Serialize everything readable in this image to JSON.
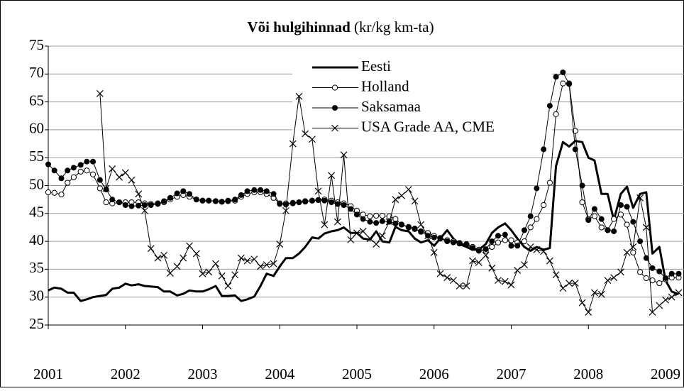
{
  "chart_data": {
    "type": "line",
    "title": "Või hulgihinnad",
    "subtitle": "(kr/kg km-ta)",
    "xlim": [
      2001,
      2009.25
    ],
    "xticks": [
      2001,
      2002,
      2003,
      2004,
      2005,
      2006,
      2007,
      2008,
      2009
    ],
    "ylim": [
      25,
      75
    ],
    "yticks": [
      25,
      30,
      35,
      40,
      45,
      50,
      55,
      60,
      65,
      70,
      75
    ],
    "grid": true,
    "legend": "top",
    "x": [
      2001,
      2001.08,
      2001.17,
      2001.25,
      2001.33,
      2001.42,
      2001.5,
      2001.58,
      2001.67,
      2001.75,
      2001.83,
      2001.92,
      2002,
      2002.08,
      2002.17,
      2002.25,
      2002.33,
      2002.42,
      2002.5,
      2002.58,
      2002.67,
      2002.75,
      2002.83,
      2002.92,
      2003,
      2003.08,
      2003.17,
      2003.25,
      2003.33,
      2003.42,
      2003.5,
      2003.58,
      2003.67,
      2003.75,
      2003.83,
      2003.92,
      2004,
      2004.08,
      2004.17,
      2004.25,
      2004.33,
      2004.42,
      2004.5,
      2004.58,
      2004.67,
      2004.75,
      2004.83,
      2004.92,
      2005,
      2005.08,
      2005.17,
      2005.25,
      2005.33,
      2005.42,
      2005.5,
      2005.58,
      2005.67,
      2005.75,
      2005.83,
      2005.92,
      2006,
      2006.08,
      2006.17,
      2006.25,
      2006.33,
      2006.42,
      2006.5,
      2006.58,
      2006.67,
      2006.75,
      2006.83,
      2006.92,
      2007,
      2007.08,
      2007.17,
      2007.25,
      2007.33,
      2007.42,
      2007.5,
      2007.58,
      2007.67,
      2007.75,
      2007.83,
      2007.92,
      2008,
      2008.08,
      2008.17,
      2008.25,
      2008.33,
      2008.42,
      2008.5,
      2008.58,
      2008.67,
      2008.75,
      2008.83,
      2008.92,
      2009,
      2009.08,
      2009.17
    ],
    "series": [
      {
        "name": "Eesti",
        "color": "#000000",
        "width": 3,
        "marker": "none",
        "values": [
          31.2,
          31.7,
          31.5,
          30.8,
          30.8,
          29.3,
          29.6,
          30,
          30.2,
          30.4,
          31.5,
          31.7,
          32.4,
          32.1,
          32.3,
          32,
          31.9,
          31.8,
          31,
          31,
          30.3,
          30.6,
          31.2,
          31,
          31,
          31.4,
          32,
          30.2,
          30.2,
          30.3,
          29.3,
          29.6,
          30.1,
          32,
          34.2,
          33.8,
          35.5,
          37,
          37,
          37.8,
          39,
          40.7,
          40.5,
          41.4,
          41.8,
          42,
          42.5,
          41.5,
          41.5,
          40.5,
          40.3,
          41.8,
          40,
          39.8,
          42.6,
          42,
          41.8,
          40.5,
          39.8,
          40.2,
          39.2,
          40.5,
          42,
          40.5,
          39.5,
          39,
          38.5,
          38.5,
          39.5,
          41.5,
          42.5,
          43.2,
          42,
          40.5,
          39,
          38.3,
          39,
          38.5,
          38.8,
          53.5,
          57.8,
          57,
          58,
          57.8,
          55,
          54.5,
          48.5,
          48.5,
          43.8,
          48.5,
          49.8,
          46,
          48.5,
          48.8,
          37.8,
          39,
          33,
          31,
          30.5
        ]
      },
      {
        "name": "Holland",
        "color": "#000000",
        "width": 1,
        "marker": "open-circle",
        "values": [
          48.8,
          48.7,
          48.4,
          50.5,
          51.5,
          52.5,
          52.7,
          52,
          49.5,
          47,
          46.8,
          47,
          47,
          47,
          47,
          46.8,
          46.7,
          46.8,
          47,
          47.5,
          48,
          48.3,
          48,
          47.5,
          47.3,
          47.3,
          47.2,
          47.1,
          47.2,
          47.3,
          48,
          48.5,
          48.8,
          48.8,
          48.5,
          47.8,
          46.8,
          46.8,
          46.9,
          47,
          47.2,
          47.3,
          47.4,
          47.5,
          47.3,
          47,
          46.8,
          46.3,
          45.5,
          44.8,
          44.5,
          44.6,
          44.6,
          44.5,
          44,
          43,
          42.5,
          42.2,
          41.8,
          41.5,
          41,
          40.6,
          40.2,
          40,
          39.7,
          39.5,
          39,
          38.5,
          38.3,
          39,
          39.8,
          40.2,
          40.2,
          39.8,
          40,
          42.5,
          44,
          46.5,
          50.5,
          62.8,
          68.3,
          68.3,
          59.8,
          47,
          44,
          44.5,
          42.5,
          42,
          44,
          44.8,
          43,
          38,
          34.5,
          33.4,
          33,
          32.5,
          33.2,
          33.5,
          33.5
        ]
      },
      {
        "name": "Saksamaa",
        "color": "#000000",
        "width": 1,
        "marker": "filled-circle",
        "values": [
          53.8,
          52.7,
          51.3,
          52.7,
          53.2,
          53.7,
          54.3,
          54.3,
          51,
          49.3,
          47.5,
          47,
          46.5,
          46.3,
          46.4,
          46.5,
          46.5,
          46.7,
          47.2,
          47.8,
          48.6,
          49,
          48.5,
          47.5,
          47.3,
          47.3,
          47.2,
          47.1,
          47.3,
          47.5,
          48.3,
          49,
          49.2,
          49.2,
          49,
          48.5,
          46.7,
          46.6,
          46.8,
          47,
          47.1,
          47.3,
          47.4,
          47.3,
          47,
          46.7,
          46.5,
          45.8,
          44.8,
          44,
          43.5,
          43.3,
          43.6,
          43.5,
          43.2,
          43,
          42.6,
          42.3,
          41.7,
          41,
          40.7,
          40.5,
          40,
          39.8,
          39.6,
          39.4,
          38.8,
          38.3,
          38.6,
          40,
          41,
          41.2,
          39.2,
          39.2,
          42,
          44.5,
          49.5,
          56.5,
          64.3,
          69.5,
          70.3,
          68.2,
          56.5,
          50,
          43.8,
          45.8,
          44,
          42,
          41.8,
          46.5,
          46.2,
          43.5,
          40,
          37,
          35.2,
          34.6,
          33.4,
          34.2,
          34.2
        ]
      },
      {
        "name": "USA Grade AA, CME",
        "color": "#000000",
        "width": 1,
        "marker": "cross",
        "values": [
          null,
          null,
          null,
          null,
          null,
          null,
          null,
          null,
          66.5,
          49.5,
          53,
          51.5,
          52.3,
          51,
          48.5,
          45.5,
          38.7,
          37,
          37.5,
          34.3,
          35.5,
          37,
          39.2,
          37.8,
          34.2,
          34.5,
          36,
          33.8,
          32,
          34,
          37,
          36.5,
          36.8,
          35.5,
          35.8,
          36,
          39.5,
          45.5,
          57.5,
          66,
          59.3,
          58.3,
          49,
          43,
          51.8,
          43.5,
          55.5,
          40.3,
          41.5,
          41.8,
          40.5,
          39.5,
          41,
          43.5,
          47.5,
          48.2,
          49.3,
          47.2,
          43,
          41,
          38,
          34.2,
          33.5,
          33,
          32,
          32,
          36.5,
          36.2,
          37.5,
          35.2,
          33,
          32.8,
          32.2,
          34.8,
          35.8,
          39,
          38.5,
          38.2,
          36.5,
          34,
          31.6,
          32.5,
          32.5,
          29,
          27.3,
          30.8,
          30.5,
          33,
          33.5,
          34.5,
          38,
          39,
          47.8,
          42.5,
          27.3,
          28.5,
          29.5,
          30,
          30.8
        ]
      }
    ]
  }
}
